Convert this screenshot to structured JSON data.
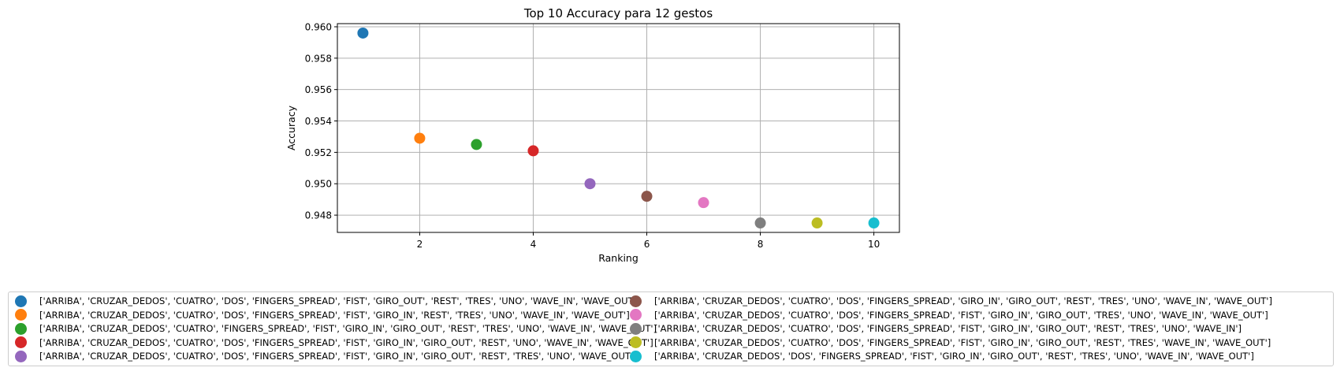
{
  "chart_data": {
    "type": "scatter",
    "title": "Top 10 Accuracy para 12 gestos",
    "xlabel": "Ranking",
    "ylabel": "Accuracy",
    "xlim": [
      0.55,
      10.45
    ],
    "ylim": [
      0.9469,
      0.9602
    ],
    "xticks": [
      2,
      4,
      6,
      8,
      10
    ],
    "yticks": [
      0.948,
      0.95,
      0.952,
      0.954,
      0.956,
      0.958,
      0.96
    ],
    "grid": true,
    "legend_placement": "bottom",
    "series": [
      {
        "name": "['ARRIBA', 'CRUZAR_DEDOS', 'CUATRO', 'DOS', 'FINGERS_SPREAD', 'FIST', 'GIRO_OUT', 'REST', 'TRES', 'UNO', 'WAVE_IN', 'WAVE_OUT']",
        "x": 1,
        "y": 0.9596,
        "color": "#1f77b4"
      },
      {
        "name": "['ARRIBA', 'CRUZAR_DEDOS', 'CUATRO', 'DOS', 'FINGERS_SPREAD', 'FIST', 'GIRO_IN', 'REST', 'TRES', 'UNO', 'WAVE_IN', 'WAVE_OUT']",
        "x": 2,
        "y": 0.9529,
        "color": "#ff7f0e"
      },
      {
        "name": "['ARRIBA', 'CRUZAR_DEDOS', 'CUATRO', 'FINGERS_SPREAD', 'FIST', 'GIRO_IN', 'GIRO_OUT', 'REST', 'TRES', 'UNO', 'WAVE_IN', 'WAVE_OUT']",
        "x": 3,
        "y": 0.9525,
        "color": "#2ca02c"
      },
      {
        "name": "['ARRIBA', 'CRUZAR_DEDOS', 'CUATRO', 'DOS', 'FINGERS_SPREAD', 'FIST', 'GIRO_IN', 'GIRO_OUT', 'REST', 'UNO', 'WAVE_IN', 'WAVE_OUT']",
        "x": 4,
        "y": 0.9521,
        "color": "#d62728"
      },
      {
        "name": "['ARRIBA', 'CRUZAR_DEDOS', 'CUATRO', 'DOS', 'FINGERS_SPREAD', 'FIST', 'GIRO_IN', 'GIRO_OUT', 'REST', 'TRES', 'UNO', 'WAVE_OUT']",
        "x": 5,
        "y": 0.95,
        "color": "#9467bd"
      },
      {
        "name": "['ARRIBA', 'CRUZAR_DEDOS', 'CUATRO', 'DOS', 'FINGERS_SPREAD', 'GIRO_IN', 'GIRO_OUT', 'REST', 'TRES', 'UNO', 'WAVE_IN', 'WAVE_OUT']",
        "x": 6,
        "y": 0.9492,
        "color": "#8c564b"
      },
      {
        "name": "['ARRIBA', 'CRUZAR_DEDOS', 'CUATRO', 'DOS', 'FINGERS_SPREAD', 'FIST', 'GIRO_IN', 'GIRO_OUT', 'TRES', 'UNO', 'WAVE_IN', 'WAVE_OUT']",
        "x": 7,
        "y": 0.9488,
        "color": "#e377c2"
      },
      {
        "name": "['ARRIBA', 'CRUZAR_DEDOS', 'CUATRO', 'DOS', 'FINGERS_SPREAD', 'FIST', 'GIRO_IN', 'GIRO_OUT', 'REST', 'TRES', 'UNO', 'WAVE_IN']",
        "x": 8,
        "y": 0.9475,
        "color": "#7f7f7f"
      },
      {
        "name": "['ARRIBA', 'CRUZAR_DEDOS', 'CUATRO', 'DOS', 'FINGERS_SPREAD', 'FIST', 'GIRO_IN', 'GIRO_OUT', 'REST', 'TRES', 'WAVE_IN', 'WAVE_OUT']",
        "x": 9,
        "y": 0.9475,
        "color": "#bcbd22"
      },
      {
        "name": "['ARRIBA', 'CRUZAR_DEDOS', 'DOS', 'FINGERS_SPREAD', 'FIST', 'GIRO_IN', 'GIRO_OUT', 'REST', 'TRES', 'UNO', 'WAVE_IN', 'WAVE_OUT']",
        "x": 10,
        "y": 0.9475,
        "color": "#17becf"
      }
    ]
  }
}
